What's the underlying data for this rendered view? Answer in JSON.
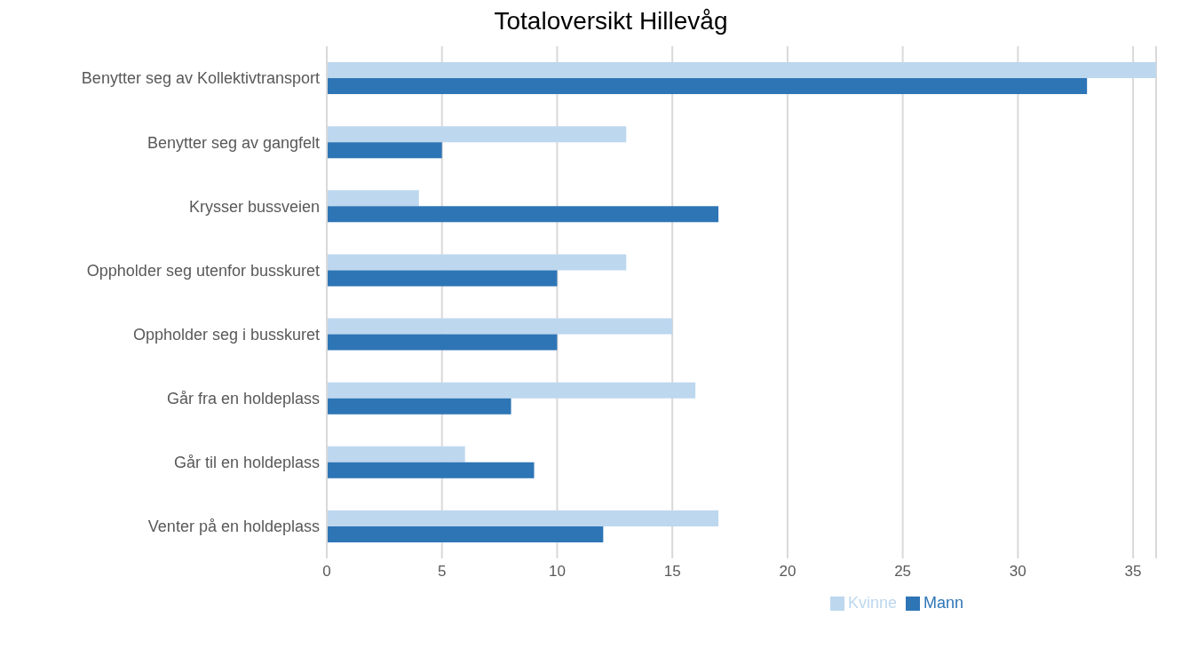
{
  "chart_data": {
    "type": "bar",
    "orientation": "horizontal",
    "title": "Totaloversikt Hillevåg",
    "categories": [
      "Benytter seg av Kollektivtransport",
      "Benytter seg av gangfelt",
      "Krysser bussveien",
      "Oppholder seg utenfor busskuret",
      "Oppholder seg i busskuret",
      "Går fra en holdeplass",
      "Går til en holdeplass",
      "Venter på en holdeplass"
    ],
    "series": [
      {
        "name": "Kvinne",
        "color": "#bdd7ee",
        "values": [
          36,
          13,
          4,
          13,
          15,
          16,
          6,
          17
        ]
      },
      {
        "name": "Mann",
        "color": "#2e75b6",
        "values": [
          33,
          5,
          17,
          10,
          10,
          8,
          9,
          12
        ]
      }
    ],
    "xlim": [
      0,
      36
    ],
    "xticks": [
      0,
      5,
      10,
      15,
      20,
      25,
      30,
      35
    ],
    "grid": "x",
    "legend": "bottom"
  }
}
